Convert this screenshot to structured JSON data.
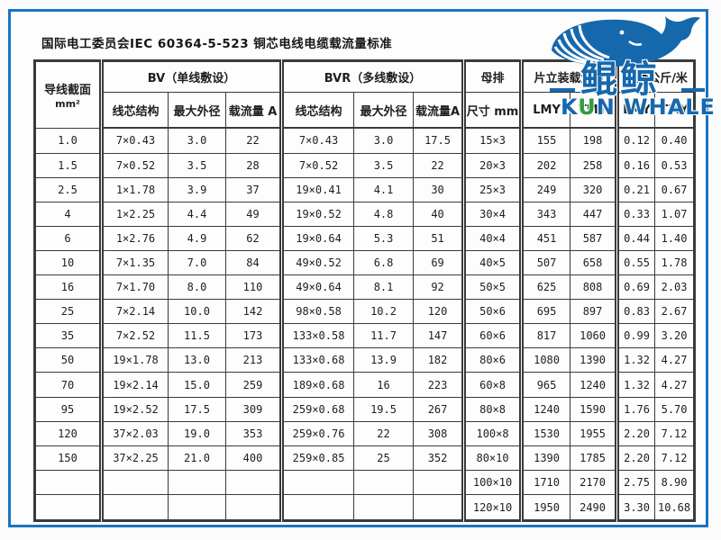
{
  "title": "国际电工委员会IEC 60364-5-523 铜芯电线电缆载流量标准",
  "logo": {
    "brand_cn": "鲲鲸",
    "brand_en_k": "K",
    "brand_en_u": "U",
    "brand_en_rest": "N WHALE"
  },
  "colors": {
    "frame": "#1d72c0",
    "brand": "#1668ad",
    "green": "#2f9e3f",
    "table_border": "#3a3a3a"
  },
  "table": {
    "corner": {
      "line1": "导线截面",
      "line2": "mm²"
    },
    "groups": [
      "BV（单线敷设）",
      "BVR（多线敷设）",
      "母排",
      "片立装载流量",
      "重量公斤/米"
    ],
    "subheaders": [
      "线芯结构",
      "最大外径",
      "载流量 A",
      "线芯结构",
      "最大外径",
      "载流量A",
      "尺寸 mm",
      "LMY",
      "TMY",
      "LMY",
      "TMY"
    ],
    "rows": [
      [
        "1.0",
        "7×0.43",
        "3.0",
        "22",
        "7×0.43",
        "3.0",
        "17.5",
        "15×3",
        "155",
        "198",
        "0.12",
        "0.40"
      ],
      [
        "1.5",
        "7×0.52",
        "3.5",
        "28",
        "7×0.52",
        "3.5",
        "22",
        "20×3",
        "202",
        "258",
        "0.16",
        "0.53"
      ],
      [
        "2.5",
        "1×1.78",
        "3.9",
        "37",
        "19×0.41",
        "4.1",
        "30",
        "25×3",
        "249",
        "320",
        "0.21",
        "0.67"
      ],
      [
        "4",
        "1×2.25",
        "4.4",
        "49",
        "19×0.52",
        "4.8",
        "40",
        "30×4",
        "343",
        "447",
        "0.33",
        "1.07"
      ],
      [
        "6",
        "1×2.76",
        "4.9",
        "62",
        "19×0.64",
        "5.3",
        "51",
        "40×4",
        "451",
        "587",
        "0.44",
        "1.40"
      ],
      [
        "10",
        "7×1.35",
        "7.0",
        "84",
        "49×0.52",
        "6.8",
        "69",
        "40×5",
        "507",
        "658",
        "0.55",
        "1.78"
      ],
      [
        "16",
        "7×1.70",
        "8.0",
        "110",
        "49×0.64",
        "8.1",
        "92",
        "50×5",
        "625",
        "808",
        "0.69",
        "2.03"
      ],
      [
        "25",
        "7×2.14",
        "10.0",
        "142",
        "98×0.58",
        "10.2",
        "120",
        "50×6",
        "695",
        "897",
        "0.83",
        "2.67"
      ],
      [
        "35",
        "7×2.52",
        "11.5",
        "173",
        "133×0.58",
        "11.7",
        "147",
        "60×6",
        "817",
        "1060",
        "0.99",
        "3.20"
      ],
      [
        "50",
        "19×1.78",
        "13.0",
        "213",
        "133×0.68",
        "13.9",
        "182",
        "80×6",
        "1080",
        "1390",
        "1.32",
        "4.27"
      ],
      [
        "70",
        "19×2.14",
        "15.0",
        "259",
        "189×0.68",
        "16",
        "223",
        "60×8",
        "965",
        "1240",
        "1.32",
        "4.27"
      ],
      [
        "95",
        "19×2.52",
        "17.5",
        "309",
        "259×0.68",
        "19.5",
        "267",
        "80×8",
        "1240",
        "1590",
        "1.76",
        "5.70"
      ],
      [
        "120",
        "37×2.03",
        "19.0",
        "353",
        "259×0.76",
        "22",
        "308",
        "100×8",
        "1530",
        "1955",
        "2.20",
        "7.12"
      ],
      [
        "150",
        "37×2.25",
        "21.0",
        "400",
        "259×0.85",
        "25",
        "352",
        "80×10",
        "1390",
        "1785",
        "2.20",
        "7.12"
      ],
      [
        "",
        "",
        "",
        "",
        "",
        "",
        "",
        "100×10",
        "1710",
        "2170",
        "2.75",
        "8.90"
      ],
      [
        "",
        "",
        "",
        "",
        "",
        "",
        "",
        "120×10",
        "1950",
        "2490",
        "3.30",
        "10.68"
      ]
    ]
  }
}
